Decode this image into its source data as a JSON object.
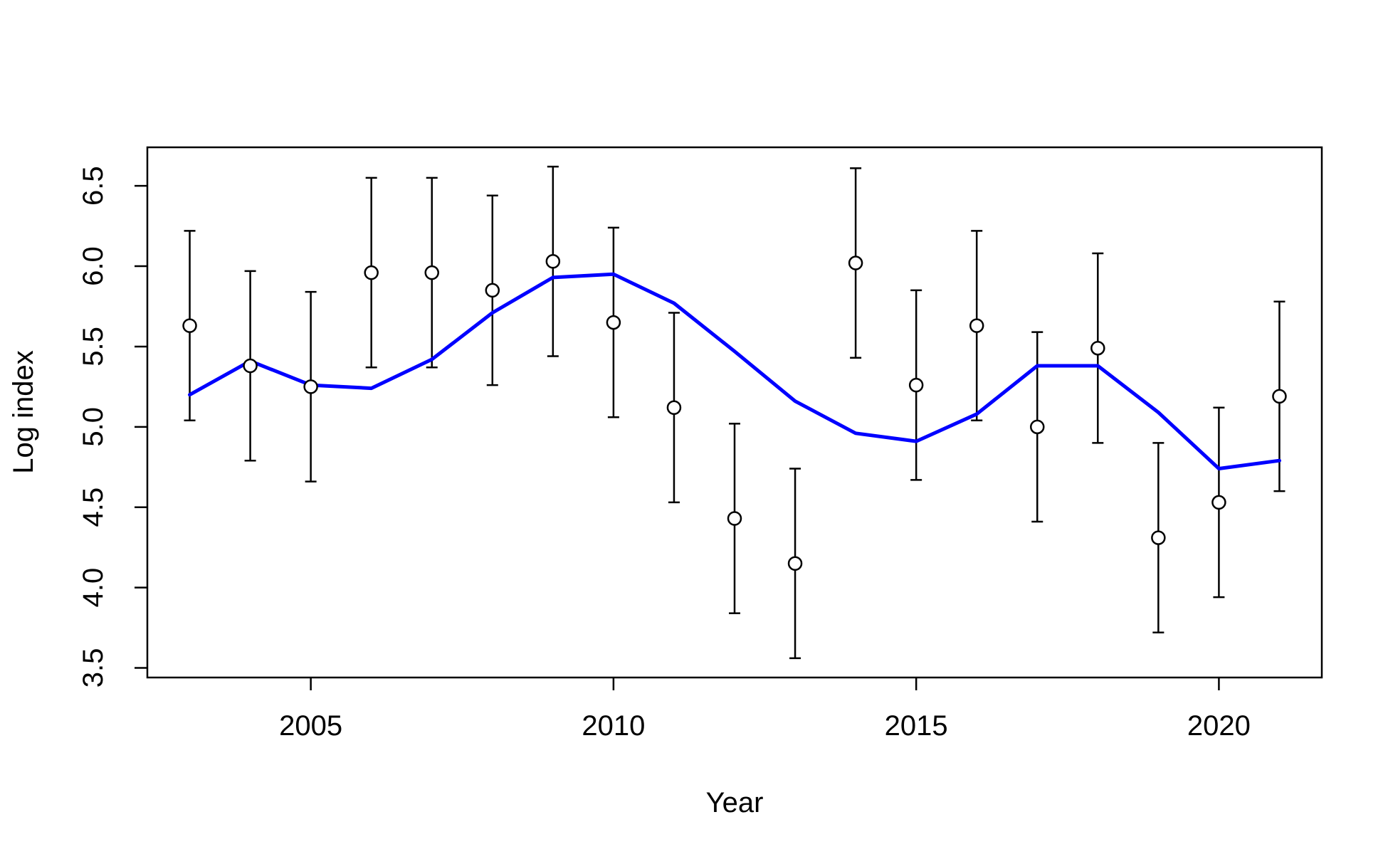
{
  "chart_data": {
    "type": "scatter",
    "title": "",
    "xlabel": "Year",
    "ylabel": "Log index",
    "xlim": [
      2002.3,
      2021.7
    ],
    "ylim": [
      3.44,
      6.74
    ],
    "xticks": [
      2005,
      2010,
      2015,
      2020
    ],
    "yticks": [
      3.5,
      4.0,
      4.5,
      5.0,
      5.5,
      6.0,
      6.5
    ],
    "xtick_labels": [
      "2005",
      "2010",
      "2015",
      "2020"
    ],
    "ytick_labels": [
      "3.5",
      "4.0",
      "4.5",
      "5.0",
      "5.5",
      "6.0",
      "6.5"
    ],
    "grid": false,
    "legend": "none",
    "colors": {
      "observed": "#000000",
      "fitted": "#0000ff"
    },
    "x": [
      2003,
      2004,
      2005,
      2006,
      2007,
      2008,
      2009,
      2010,
      2011,
      2012,
      2013,
      2014,
      2015,
      2016,
      2017,
      2018,
      2019,
      2020,
      2021
    ],
    "series": [
      {
        "kind": "points_with_errorbars",
        "values": [
          5.63,
          5.38,
          5.25,
          5.96,
          5.96,
          5.85,
          6.03,
          5.65,
          5.12,
          4.43,
          4.15,
          6.02,
          5.26,
          5.63,
          5.0,
          5.49,
          4.31,
          4.53,
          5.19
        ],
        "lower": [
          5.04,
          4.79,
          4.66,
          5.37,
          5.37,
          5.26,
          5.44,
          5.06,
          4.53,
          3.84,
          3.56,
          5.43,
          4.67,
          5.04,
          4.41,
          4.9,
          3.72,
          3.94,
          4.6
        ],
        "upper": [
          6.22,
          5.97,
          5.84,
          6.55,
          6.55,
          6.44,
          6.62,
          6.24,
          5.71,
          5.02,
          4.74,
          6.61,
          5.85,
          6.22,
          5.59,
          6.08,
          4.9,
          5.12,
          5.78
        ]
      },
      {
        "kind": "fitted_line",
        "values": [
          5.2,
          5.41,
          5.26,
          5.24,
          5.42,
          5.71,
          5.93,
          5.95,
          5.77,
          5.47,
          5.16,
          4.96,
          4.91,
          5.08,
          5.38,
          5.38,
          5.09,
          4.74,
          4.79
        ]
      }
    ]
  }
}
